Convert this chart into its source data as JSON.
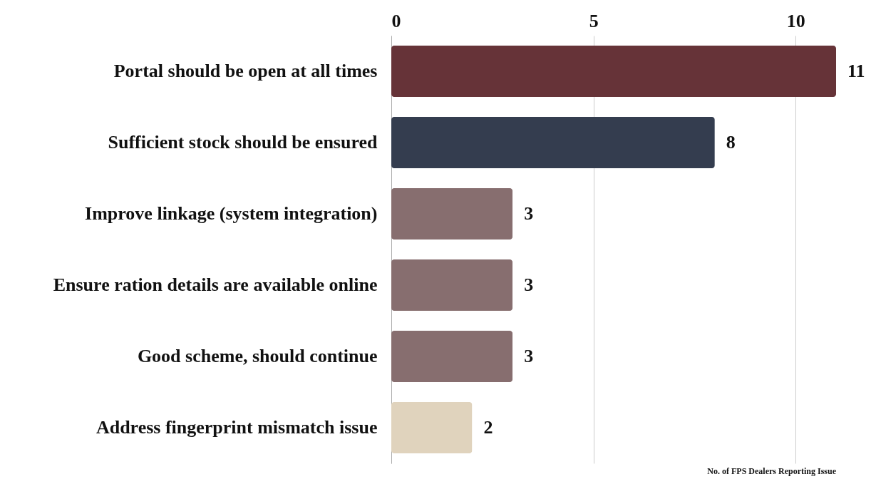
{
  "chart_data": {
    "type": "bar",
    "orientation": "horizontal",
    "xlabel": "No. of FPS Dealers Reporting Issue",
    "categories": [
      "Portal should be open at all times",
      "Sufficient stock should be ensured",
      "Improve linkage (system integration)",
      "Ensure ration details are available online",
      "Good scheme, should continue",
      "Address fingerprint mismatch issue"
    ],
    "values": [
      11,
      8,
      3,
      3,
      3,
      2
    ],
    "colors": [
      "#663338",
      "#343d4f",
      "#876e6f",
      "#876e6f",
      "#876e6f",
      "#e0d3bd"
    ],
    "xlim": [
      0,
      11
    ],
    "xticks": [
      0,
      5,
      10
    ],
    "grid": "x",
    "data_labels": true
  }
}
